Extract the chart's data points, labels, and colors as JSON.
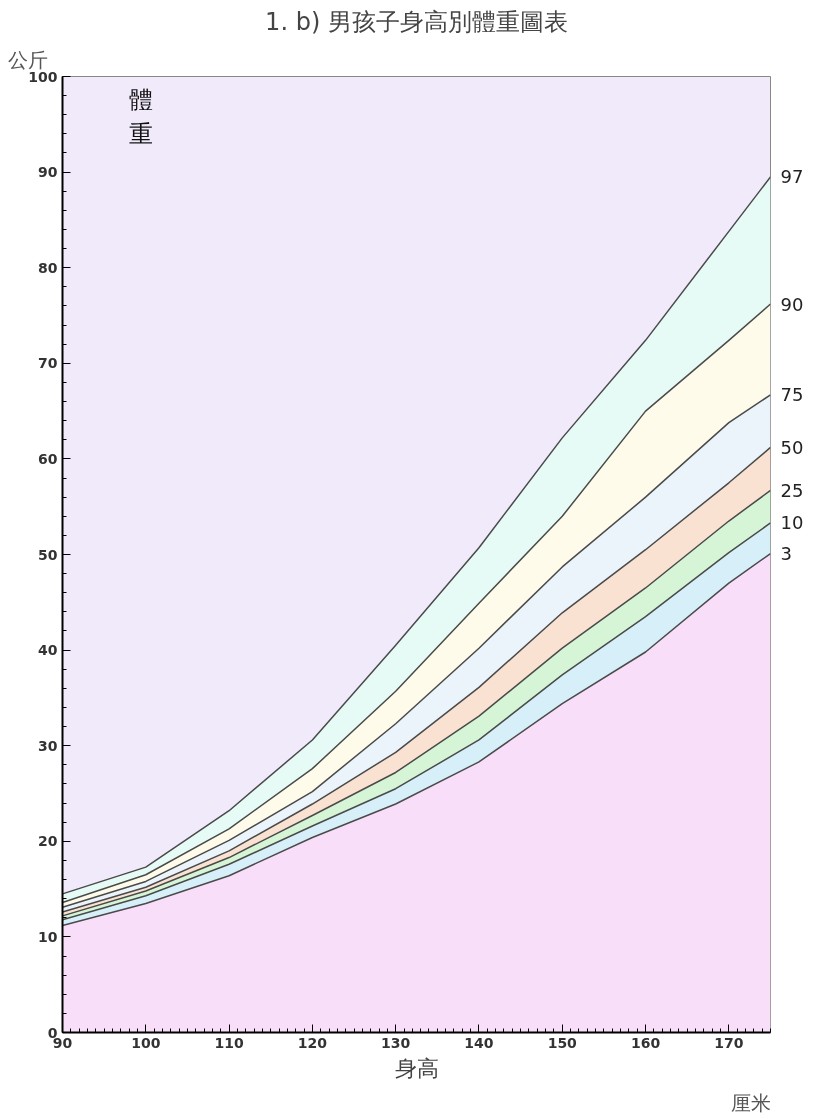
{
  "chart_data": {
    "type": "area",
    "title": "1. b) 男孩子身高別體重圖表",
    "xlabel": "身高",
    "ylabel": "體重",
    "annotations": [
      "公斤",
      "厘米"
    ],
    "x": [
      90,
      100,
      110,
      120,
      130,
      140,
      150,
      160,
      170,
      175
    ],
    "xlim": [
      90,
      175
    ],
    "xticks": [
      90,
      100,
      110,
      120,
      130,
      140,
      150,
      160,
      170
    ],
    "ylim": [
      0,
      100
    ],
    "yticks": [
      0,
      10,
      20,
      30,
      40,
      50,
      60,
      70,
      80,
      90,
      100
    ],
    "grid": false,
    "series": [
      {
        "name": "3",
        "color": "#f9defa",
        "values": [
          11.2,
          13.5,
          16.4,
          20.4,
          23.9,
          28.3,
          34.4,
          39.8,
          47.0,
          50.1
        ]
      },
      {
        "name": "10",
        "color": "#d6eff8",
        "values": [
          11.8,
          14.3,
          17.6,
          21.6,
          25.5,
          30.6,
          37.4,
          43.5,
          50.2,
          53.3
        ]
      },
      {
        "name": "25",
        "color": "#d6f5d6",
        "values": [
          12.2,
          14.8,
          18.3,
          22.7,
          27.2,
          33.1,
          40.2,
          46.5,
          53.5,
          56.7
        ]
      },
      {
        "name": "50",
        "color": "#f9e2d2",
        "values": [
          12.6,
          15.2,
          19.0,
          23.9,
          29.3,
          36.1,
          43.9,
          50.5,
          57.5,
          61.2
        ]
      },
      {
        "name": "75",
        "color": "#ebf3fb",
        "values": [
          13.1,
          15.8,
          20.1,
          25.2,
          32.3,
          40.2,
          48.7,
          56.0,
          63.8,
          66.7
        ]
      },
      {
        "name": "90",
        "color": "#fffbea",
        "values": [
          13.6,
          16.5,
          21.3,
          27.6,
          35.7,
          44.9,
          54.0,
          65.0,
          72.4,
          76.2
        ]
      },
      {
        "name": "97",
        "color": "#e6fbf5",
        "values": [
          14.5,
          17.3,
          23.2,
          30.6,
          40.5,
          50.7,
          62.2,
          72.4,
          83.8,
          89.5
        ]
      }
    ]
  }
}
